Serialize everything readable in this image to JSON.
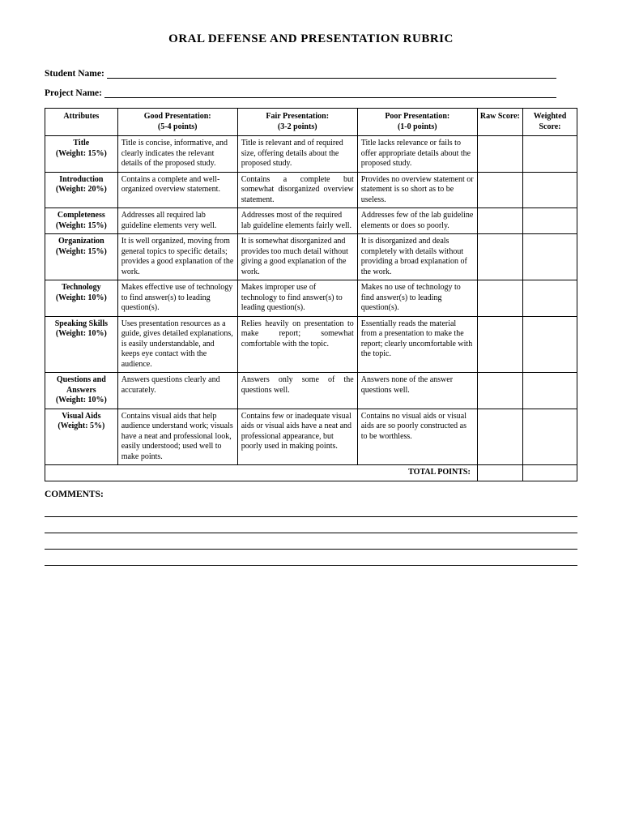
{
  "title": "ORAL DEFENSE AND PRESENTATION RUBRIC",
  "fields": {
    "student_label": "Student Name:",
    "project_label": "Project Name:"
  },
  "headers": {
    "attributes": "Attributes",
    "good": "Good Presentation:",
    "good_pts": "(5-4 points)",
    "fair": "Fair Presentation:",
    "fair_pts": "(3-2 points)",
    "poor": "Poor Presentation:",
    "poor_pts": "(1-0 points)",
    "raw": "Raw Score:",
    "weighted": "Weighted Score:"
  },
  "rows": [
    {
      "attr": "Title",
      "weight": "(Weight: 15%)",
      "good": "Title is concise, informative, and clearly indicates the relevant details of the proposed study.",
      "fair": "Title is relevant and of required size, offering details about the proposed study.",
      "poor": "Title lacks relevance or fails to offer appropriate details about the proposed study."
    },
    {
      "attr": "Introduction",
      "weight": "(Weight: 20%)",
      "good": "Contains a complete and well-organized overview statement.",
      "fair": "Contains a complete but somewhat disorganized overview statement.",
      "poor": "Provides no overview statement or statement is so short as to be useless."
    },
    {
      "attr": "Completeness",
      "weight": "(Weight: 15%)",
      "good": "Addresses all required lab guideline elements very well.",
      "fair": "Addresses most of the required lab guideline elements fairly well.",
      "poor": "Addresses few of the lab guideline elements or does so poorly."
    },
    {
      "attr": "Organization",
      "weight": "(Weight: 15%)",
      "good": "It is well organized, moving from general topics to specific details; provides a good explanation of the work.",
      "fair": "It is somewhat disorganized and provides too much detail without giving a good explanation of the work.",
      "poor": "It is disorganized and deals completely with details without providing a broad explanation of the work."
    },
    {
      "attr": "Technology",
      "weight": "(Weight: 10%)",
      "good": "Makes effective use of technology to find answer(s) to leading question(s).",
      "fair": "Makes improper use of technology to find answer(s) to leading question(s).",
      "poor": "Makes no use of technology to find answer(s) to leading question(s)."
    },
    {
      "attr": "Speaking Skills",
      "weight": "(Weight: 10%)",
      "good": "Uses presentation resources as a guide, gives detailed explanations, is easily understandable, and keeps eye contact with the audience.",
      "fair": "Relies heavily on presentation to make report; somewhat comfortable with the topic.",
      "poor": "Essentially reads the material from a presentation to make the report; clearly uncomfortable with the topic."
    },
    {
      "attr": "Questions and Answers",
      "weight": "(Weight: 10%)",
      "good": "Answers questions clearly and accurately.",
      "fair": "Answers only some of the questions well.",
      "poor": "Answers none of the answer questions well."
    },
    {
      "attr": "Visual Aids",
      "weight": "(Weight: 5%)",
      "good": "Contains visual aids that help audience understand work; visuals have a neat and professional look, easily understood; used well to make points.",
      "fair": "Contains few or inadequate visual aids or visual aids have a neat and professional appearance, but poorly used in making points.",
      "poor": "Contains no visual aids or visual aids are so poorly constructed as to be worthless."
    }
  ],
  "total_label": "TOTAL POINTS:",
  "comments_label": "COMMENTS:"
}
